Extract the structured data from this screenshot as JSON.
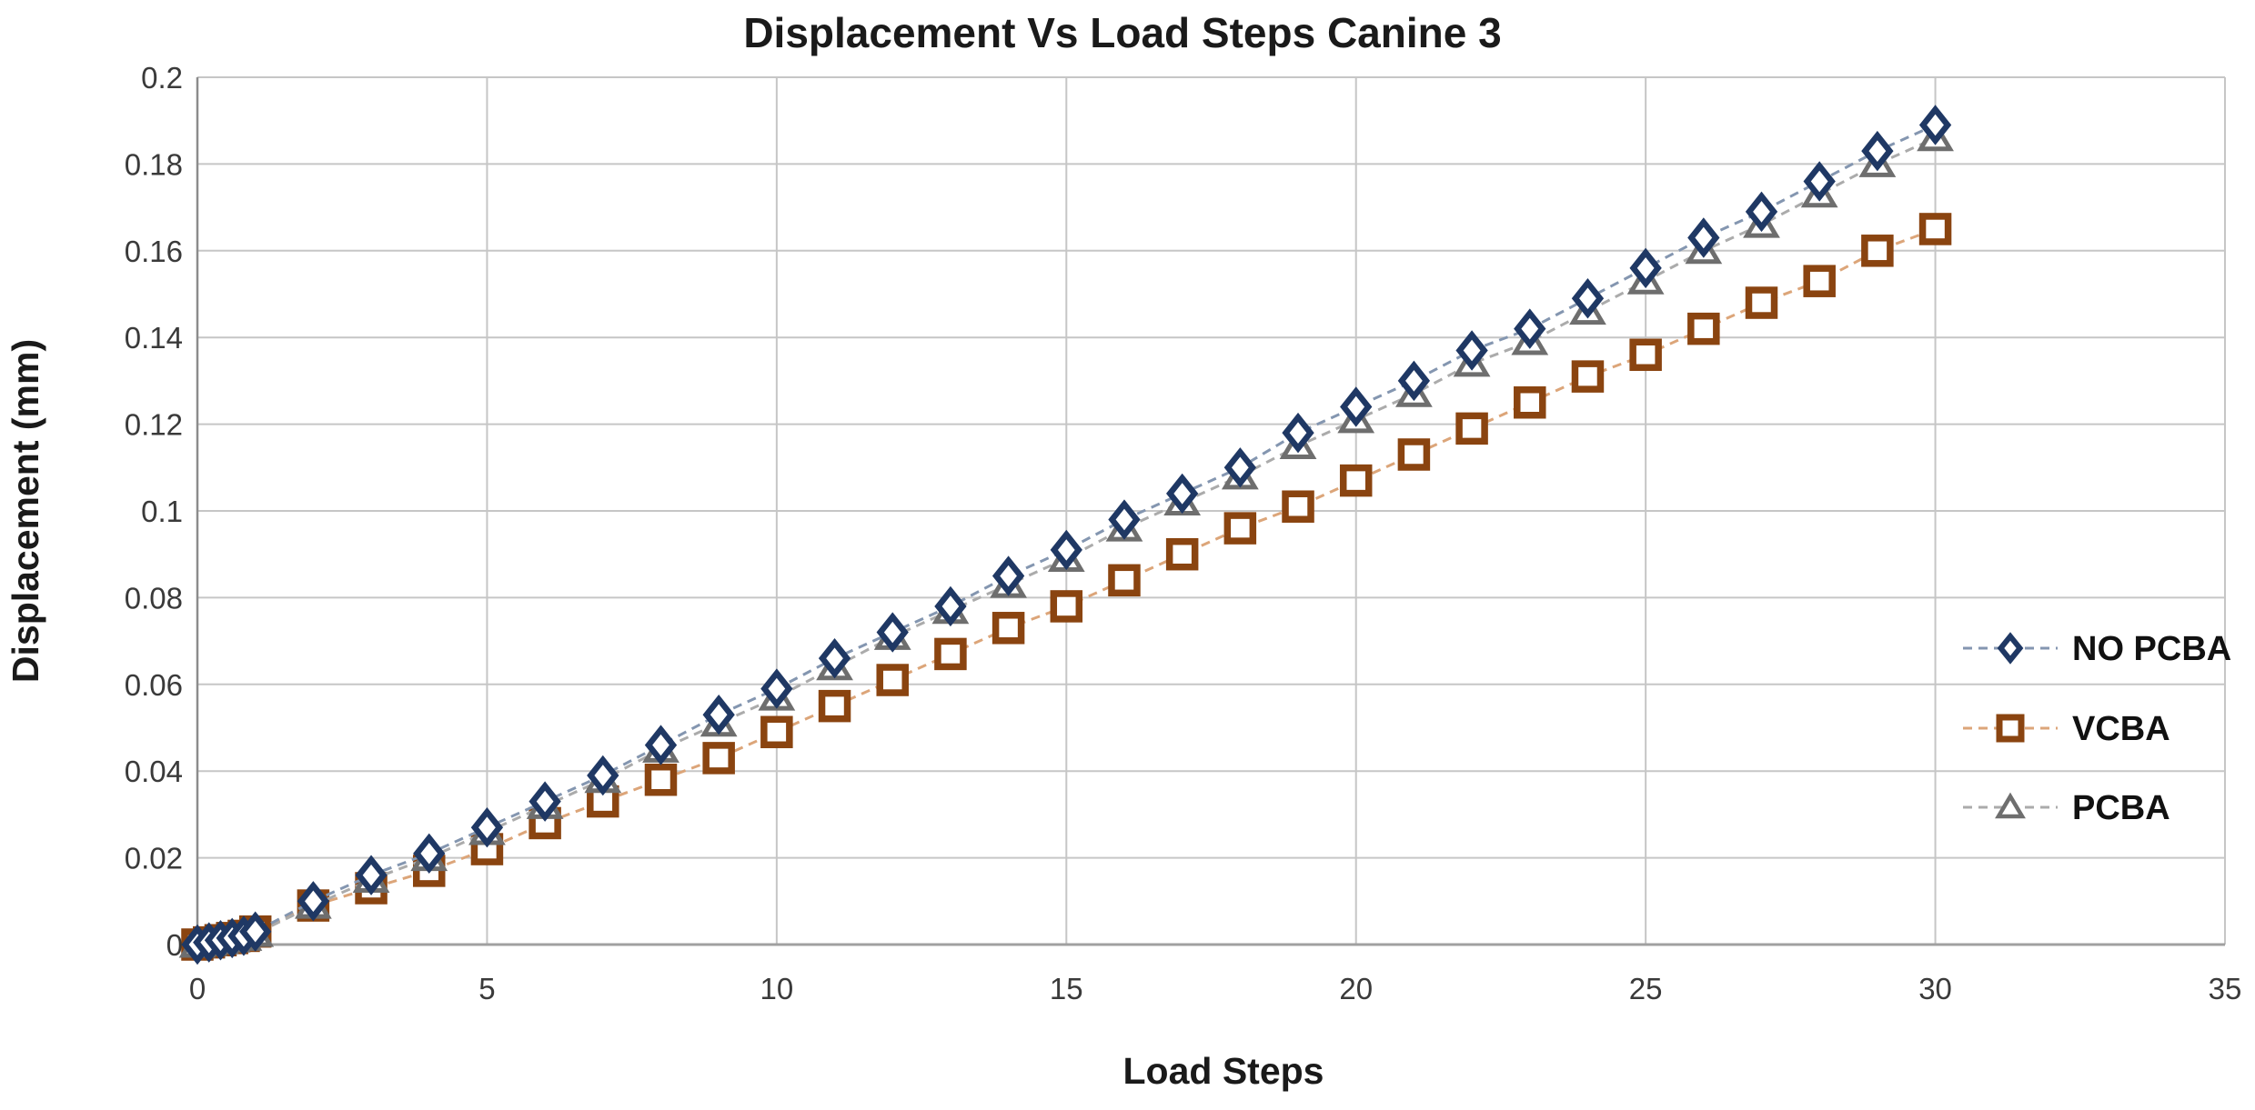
{
  "colors": {
    "background": "#ffffff",
    "gridline": "#c6c6c6",
    "axis_line": "#8c8c8c",
    "bottom_axis_line": "#a0a0a0",
    "title_text": "#1a1a1a",
    "tick_text": "#3a3a3a",
    "legend_text": "#111111"
  },
  "chart_data": {
    "type": "line",
    "title": "Displacement Vs Load Steps Canine 3",
    "xlabel": "Load Steps",
    "ylabel": "Displacement (mm)",
    "xlim": [
      0,
      35
    ],
    "ylim": [
      0,
      0.2
    ],
    "grid": true,
    "legend_position": "right-inside",
    "x_ticks": [
      "0",
      "5",
      "10",
      "15",
      "20",
      "25",
      "30",
      "35"
    ],
    "x_tick_values": [
      0,
      5,
      10,
      15,
      20,
      25,
      30,
      35
    ],
    "y_ticks": [
      "0",
      "0.02",
      "0.04",
      "0.06",
      "0.08",
      "0.1",
      "0.12",
      "0.14",
      "0.16",
      "0.18",
      "0.2"
    ],
    "y_tick_values": [
      0,
      0.02,
      0.04,
      0.06,
      0.08,
      0.1,
      0.12,
      0.14,
      0.16,
      0.18,
      0.2
    ],
    "x": [
      0,
      0.2,
      0.4,
      0.6,
      0.8,
      1,
      2,
      3,
      4,
      5,
      6,
      7,
      8,
      9,
      10,
      11,
      12,
      13,
      14,
      15,
      16,
      17,
      18,
      19,
      20,
      21,
      22,
      23,
      24,
      25,
      26,
      27,
      28,
      29,
      30
    ],
    "series": [
      {
        "name": "NO PCBA",
        "marker": "diamond",
        "marker_color": "#1f3864",
        "line_color": "#8496b0",
        "values": [
          0,
          0.0005,
          0.001,
          0.0015,
          0.002,
          0.003,
          0.01,
          0.016,
          0.021,
          0.027,
          0.033,
          0.039,
          0.046,
          0.053,
          0.059,
          0.066,
          0.072,
          0.078,
          0.085,
          0.091,
          0.098,
          0.104,
          0.11,
          0.118,
          0.124,
          0.13,
          0.137,
          0.142,
          0.149,
          0.156,
          0.163,
          0.169,
          0.176,
          0.183,
          0.189
        ]
      },
      {
        "name": "VCBA",
        "marker": "square",
        "marker_color": "#8a4410",
        "line_color": "#dca579",
        "values": [
          0,
          0.0005,
          0.001,
          0.0015,
          0.002,
          0.003,
          0.009,
          0.013,
          0.017,
          0.022,
          0.028,
          0.033,
          0.038,
          0.043,
          0.049,
          0.055,
          0.061,
          0.067,
          0.073,
          0.078,
          0.084,
          0.09,
          0.096,
          0.101,
          0.107,
          0.113,
          0.119,
          0.125,
          0.131,
          0.136,
          0.142,
          0.148,
          0.153,
          0.16,
          0.165
        ]
      },
      {
        "name": "PCBA",
        "marker": "triangle",
        "marker_color": "#6e6e6e",
        "line_color": "#ababab",
        "values": [
          0,
          0.0004,
          0.0008,
          0.0012,
          0.0016,
          0.0025,
          0.009,
          0.015,
          0.02,
          0.026,
          0.032,
          0.038,
          0.045,
          0.051,
          0.057,
          0.064,
          0.071,
          0.077,
          0.083,
          0.089,
          0.096,
          0.102,
          0.108,
          0.115,
          0.121,
          0.127,
          0.134,
          0.139,
          0.146,
          0.153,
          0.16,
          0.166,
          0.173,
          0.18,
          0.186
        ]
      }
    ]
  }
}
